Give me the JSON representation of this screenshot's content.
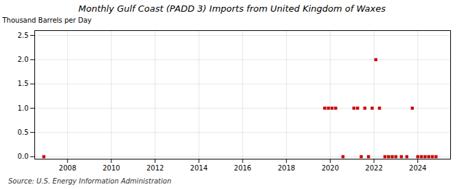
{
  "chart_data": {
    "type": "scatter",
    "title": "Monthly Gulf Coast (PADD 3) Imports from United Kingdom of Waxes",
    "ylabel": "Thousand Barrels per Day",
    "annotations": [
      "Source: U.S. Energy Information Administration"
    ],
    "color": "#cc0000",
    "marker": "square",
    "grid": true,
    "xlim": [
      2006.5,
      2025.5
    ],
    "ylim": [
      -0.05,
      2.6
    ],
    "xticks": [
      2008,
      2010,
      2012,
      2014,
      2016,
      2018,
      2020,
      2022,
      2024
    ],
    "yticks": [
      {
        "value": 0.0,
        "label": "0.0"
      },
      0.5,
      {
        "value": 1.0,
        "label": "1.0"
      },
      1.5,
      {
        "value": 2.0,
        "label": "2.0"
      },
      2.5
    ],
    "x": [
      2006.9167,
      2019.75,
      2019.9167,
      2020.0833,
      2020.25,
      2020.5833,
      2021.0833,
      2021.25,
      2021.4167,
      2021.5833,
      2021.75,
      2021.9167,
      2022.0833,
      2022.25,
      2022.5,
      2022.6667,
      2022.8333,
      2023.0,
      2023.25,
      2023.5,
      2023.75,
      2024.0,
      2024.1667,
      2024.3333,
      2024.5,
      2024.6667,
      2024.8333
    ],
    "values": [
      0.0,
      1.0,
      1.0,
      1.0,
      1.0,
      0.0,
      1.0,
      1.0,
      0.0,
      1.0,
      0.0,
      1.0,
      2.0,
      1.0,
      0.0,
      0.0,
      0.0,
      0.0,
      0.0,
      0.0,
      1.0,
      0.0,
      0.0,
      0.0,
      0.0,
      0.0,
      0.0
    ]
  }
}
